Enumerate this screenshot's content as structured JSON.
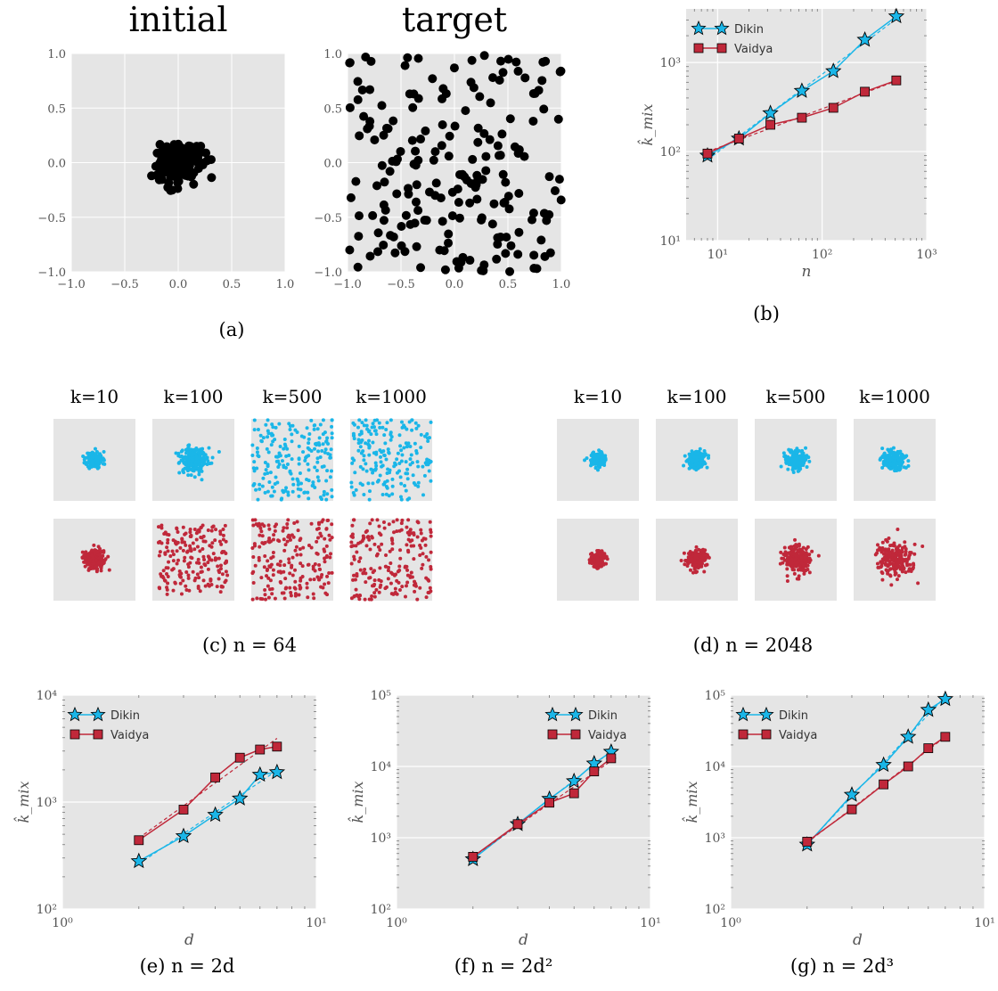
{
  "captions": {
    "a": "(a)",
    "b": "(b)",
    "c": "(c) n = 64",
    "d": "(d) n = 2048",
    "e": "(e) n = 2d",
    "f": "(f) n = 2d²",
    "g": "(g) n = 2d³"
  },
  "colors": {
    "dikin": "#1ab6e8",
    "vaidya": "#c0283a",
    "panel_bg": "#e5e5e5",
    "points": "#000000"
  },
  "grid_titles": [
    "k=10",
    "k=100",
    "k=500",
    "k=1000"
  ],
  "chart_data": [
    {
      "id": "a-initial",
      "type": "scatter",
      "title": "initial",
      "xlim": [
        -1,
        1
      ],
      "ylim": [
        -1,
        1
      ],
      "x_ticks": [
        "−1.0",
        "−0.5",
        "0.0",
        "0.5",
        "1.0"
      ],
      "y_ticks": [
        "−1.0",
        "−0.5",
        "0.0",
        "0.5",
        "1.0"
      ],
      "distribution": "gaussian cluster centered at (0, 0), spread ≈ 0.1",
      "n_points": 200
    },
    {
      "id": "a-target",
      "type": "scatter",
      "title": "target",
      "xlim": [
        -1,
        1
      ],
      "ylim": [
        -1,
        1
      ],
      "x_ticks": [
        "−1.0",
        "−0.5",
        "0.0",
        "0.5",
        "1.0"
      ],
      "y_ticks": [
        "−1.0",
        "−0.5",
        "0.0",
        "0.5",
        "1.0"
      ],
      "distribution": "uniform over [−1, 1] × [−1, 1]",
      "n_points": 200
    },
    {
      "id": "b",
      "type": "line",
      "xscale": "log",
      "yscale": "log",
      "xlabel": "n",
      "ylabel": "k̂_mix",
      "xlim": [
        5,
        1000
      ],
      "ylim": [
        10,
        4000
      ],
      "x_ticks": [
        "10¹",
        "10²",
        "10³"
      ],
      "y_ticks": [
        "10¹",
        "10²",
        "10³"
      ],
      "legend": "top-left",
      "x": [
        8,
        16,
        32,
        64,
        128,
        256,
        512
      ],
      "series": [
        {
          "name": "Dikin",
          "values": [
            90,
            140,
            270,
            480,
            800,
            1800,
            3300
          ]
        },
        {
          "name": "Vaidya",
          "values": [
            95,
            140,
            200,
            240,
            310,
            470,
            630
          ]
        }
      ]
    },
    {
      "id": "c",
      "type": "scatter",
      "panels": [
        {
          "title": "k=10",
          "dikin_spread": 0.22,
          "vaidya_spread": 0.28
        },
        {
          "title": "k=100",
          "dikin_spread": 0.4,
          "vaidya_spread": "uniform-ish"
        },
        {
          "title": "k=500",
          "dikin_spread": "uniform",
          "vaidya_spread": "uniform"
        },
        {
          "title": "k=1000",
          "dikin_spread": "uniform",
          "vaidya_spread": "uniform"
        }
      ]
    },
    {
      "id": "d",
      "type": "scatter",
      "panels": [
        {
          "title": "k=10",
          "dikin_spread": 0.18,
          "vaidya_spread": 0.18
        },
        {
          "title": "k=100",
          "dikin_spread": 0.22,
          "vaidya_spread": 0.24
        },
        {
          "title": "k=500",
          "dikin_spread": 0.25,
          "vaidya_spread": 0.38
        },
        {
          "title": "k=1000",
          "dikin_spread": 0.28,
          "vaidya_spread": 0.45
        }
      ]
    },
    {
      "id": "e",
      "type": "line",
      "xscale": "log",
      "yscale": "log",
      "xlabel": "d",
      "ylabel": "k̂_mix",
      "xlim": [
        1,
        10
      ],
      "ylim": [
        100,
        10000
      ],
      "x_ticks": [
        "10⁰",
        "10¹"
      ],
      "y_ticks": [
        "10²",
        "10³",
        "10⁴"
      ],
      "legend": "top-left",
      "x": [
        2,
        3,
        4,
        5,
        6,
        7
      ],
      "series": [
        {
          "name": "Dikin",
          "values": [
            280,
            480,
            760,
            1080,
            1800,
            1900
          ]
        },
        {
          "name": "Vaidya",
          "values": [
            440,
            850,
            1700,
            2600,
            3100,
            3300
          ]
        }
      ]
    },
    {
      "id": "f",
      "type": "line",
      "xscale": "log",
      "yscale": "log",
      "xlabel": "d",
      "ylabel": "k̂_mix",
      "xlim": [
        1,
        10
      ],
      "ylim": [
        100,
        100000
      ],
      "x_ticks": [
        "10⁰",
        "10¹"
      ],
      "y_ticks": [
        "10²",
        "10³",
        "10⁴",
        "10⁵"
      ],
      "legend": "top-right",
      "x": [
        2,
        3,
        4,
        5,
        6,
        7
      ],
      "series": [
        {
          "name": "Dikin",
          "values": [
            500,
            1550,
            3500,
            6200,
            11000,
            16000
          ]
        },
        {
          "name": "Vaidya",
          "values": [
            540,
            1550,
            3100,
            4200,
            8500,
            13000
          ]
        }
      ]
    },
    {
      "id": "g",
      "type": "line",
      "xscale": "log",
      "yscale": "log",
      "xlabel": "d",
      "ylabel": "k̂_mix",
      "xlim": [
        1,
        10
      ],
      "ylim": [
        100,
        100000
      ],
      "x_ticks": [
        "10⁰",
        "10¹"
      ],
      "y_ticks": [
        "10²",
        "10³",
        "10⁴",
        "10⁵"
      ],
      "legend": "top-left",
      "x": [
        2,
        3,
        4,
        5,
        6,
        7
      ],
      "series": [
        {
          "name": "Dikin",
          "values": [
            800,
            4000,
            10500,
            26000,
            62000,
            88000
          ]
        },
        {
          "name": "Vaidya",
          "values": [
            880,
            2500,
            5600,
            10000,
            18000,
            26000
          ]
        }
      ]
    }
  ]
}
